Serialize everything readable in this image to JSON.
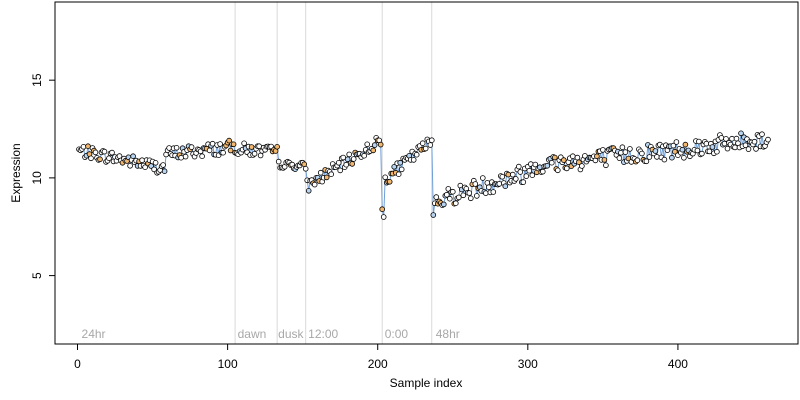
{
  "chart_data": {
    "type": "scatter",
    "title": "",
    "xlabel": "Sample index",
    "ylabel": "Expression",
    "xlim": [
      -15,
      480
    ],
    "ylim": [
      1.5,
      19
    ],
    "x_ticks": [
      0,
      100,
      200,
      300,
      400
    ],
    "y_ticks": [
      5,
      10,
      15
    ],
    "grid": false,
    "legend": "none",
    "colors": {
      "line": "#6f9fd8",
      "point_fill_main": "#ffffff",
      "point_fill_highlight": "#f2b870",
      "point_fill_blue": "#b8d4f0",
      "point_stroke": "#000000",
      "boundary_line": "#d9d9d9",
      "annotation_text": "#a8a8a8"
    },
    "boundaries": [
      105,
      133,
      152,
      203,
      236
    ],
    "annotations": [
      {
        "x": 2,
        "label": "24hr"
      },
      {
        "x": 106,
        "label": "dawn"
      },
      {
        "x": 133,
        "label": "dusk"
      },
      {
        "x": 153,
        "label": "12:00"
      },
      {
        "x": 204,
        "label": "0:00"
      },
      {
        "x": 238,
        "label": "48hr"
      }
    ],
    "segments": [
      {
        "x_start": 1,
        "x_end": 58,
        "y_start": 11.4,
        "y_end": 10.5,
        "noise": 0.2
      },
      {
        "x_start": 59,
        "x_end": 105,
        "y_start": 11.2,
        "y_end": 11.6,
        "noise": 0.22
      },
      {
        "x_start": 106,
        "x_end": 133,
        "y_start": 11.5,
        "y_end": 11.3,
        "noise": 0.2
      },
      {
        "x_start": 134,
        "x_end": 152,
        "y_start": 10.7,
        "y_end": 10.6,
        "noise": 0.12
      },
      {
        "x_start": 153,
        "x_end": 202,
        "y_start": 9.6,
        "y_end": 11.9,
        "noise": 0.2
      },
      {
        "x_start": 203,
        "x_end": 236,
        "y_start": 9.8,
        "y_end": 11.9,
        "noise": 0.2
      },
      {
        "x_start": 237,
        "x_end": 300,
        "y_start": 8.8,
        "y_end": 10.3,
        "noise": 0.3
      },
      {
        "x_start": 301,
        "x_end": 460,
        "y_start": 10.6,
        "y_end": 12.0,
        "noise": 0.3
      }
    ],
    "dips": [
      {
        "x": 203,
        "y": 8.4
      },
      {
        "x": 204,
        "y": 8.0
      },
      {
        "x": 237,
        "y": 8.1
      },
      {
        "x": 238,
        "y": 8.7
      }
    ]
  }
}
